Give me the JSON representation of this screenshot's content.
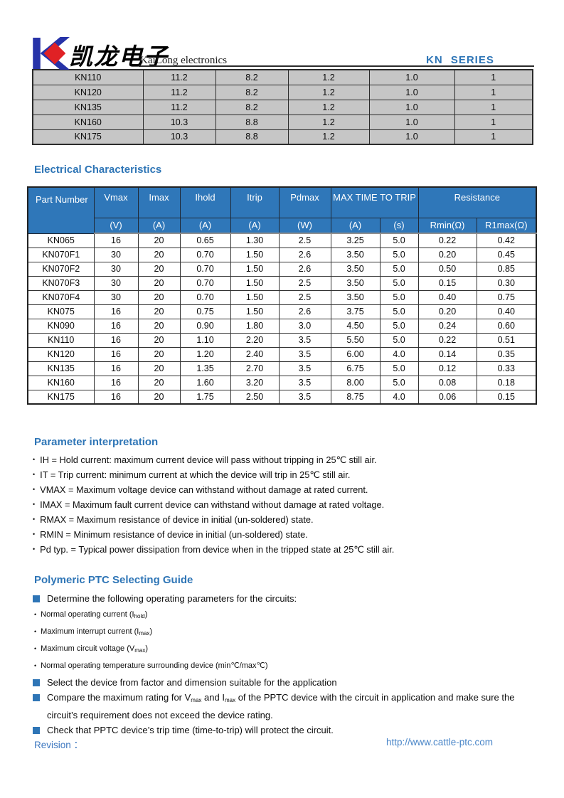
{
  "header": {
    "logo_cn": "凯龙电子",
    "logo_en": "KaiLong electronics",
    "series": "KN   SERIES"
  },
  "colors": {
    "accent": "#2E75B6",
    "table_header_blue": "#2F77B9",
    "table_gray": "#C6C6C6",
    "logo_blue": "#2733A8",
    "logo_red": "#E02125",
    "link_blue": "#4A86C8"
  },
  "top_table": {
    "rows": [
      [
        "KN110",
        "11.2",
        "8.2",
        "1.2",
        "1.0",
        "1"
      ],
      [
        "KN120",
        "11.2",
        "8.2",
        "1.2",
        "1.0",
        "1"
      ],
      [
        "KN135",
        "11.2",
        "8.2",
        "1.2",
        "1.0",
        "1"
      ],
      [
        "KN160",
        "10.3",
        "8.8",
        "1.2",
        "1.0",
        "1"
      ],
      [
        "KN175",
        "10.3",
        "8.8",
        "1.2",
        "1.0",
        "1"
      ]
    ]
  },
  "sections": {
    "electrical": "Electrical Characteristics",
    "parameter": "Parameter interpretation",
    "guide": "Polymeric PTC Selecting Guide"
  },
  "ec_table": {
    "headers": {
      "part": "Part Number",
      "vmax": "Vmax",
      "imax": "Imax",
      "ihold": "Ihold",
      "itrip": "Itrip",
      "pdmax": "Pdmax",
      "max_time": "MAX TIME TO TRIP",
      "resistance": "Resistance"
    },
    "units": [
      "(V)",
      "(A)",
      "(A)",
      "(A)",
      "(W)",
      "(A)",
      "(s)",
      "Rmin(Ω)",
      "R1max(Ω)"
    ],
    "rows": [
      [
        "KN065",
        "16",
        "20",
        "0.65",
        "1.30",
        "2.5",
        "3.25",
        "5.0",
        "0.22",
        "0.42"
      ],
      [
        "KN070F1",
        "30",
        "20",
        "0.70",
        "1.50",
        "2.6",
        "3.50",
        "5.0",
        "0.20",
        "0.45"
      ],
      [
        "KN070F2",
        "30",
        "20",
        "0.70",
        "1.50",
        "2.6",
        "3.50",
        "5.0",
        "0.50",
        "0.85"
      ],
      [
        "KN070F3",
        "30",
        "20",
        "0.70",
        "1.50",
        "2.5",
        "3.50",
        "5.0",
        "0.15",
        "0.30"
      ],
      [
        "KN070F4",
        "30",
        "20",
        "0.70",
        "1.50",
        "2.5",
        "3.50",
        "5.0",
        "0.40",
        "0.75"
      ],
      [
        "KN075",
        "16",
        "20",
        "0.75",
        "1.50",
        "2.6",
        "3.75",
        "5.0",
        "0.20",
        "0.40"
      ],
      [
        "KN090",
        "16",
        "20",
        "0.90",
        "1.80",
        "3.0",
        "4.50",
        "5.0",
        "0.24",
        "0.60"
      ],
      [
        "KN110",
        "16",
        "20",
        "1.10",
        "2.20",
        "3.5",
        "5.50",
        "5.0",
        "0.22",
        "0.51"
      ],
      [
        "KN120",
        "16",
        "20",
        "1.20",
        "2.40",
        "3.5",
        "6.00",
        "4.0",
        "0.14",
        "0.35"
      ],
      [
        "KN135",
        "16",
        "20",
        "1.35",
        "2.70",
        "3.5",
        "6.75",
        "5.0",
        "0.12",
        "0.33"
      ],
      [
        "KN160",
        "16",
        "20",
        "1.60",
        "3.20",
        "3.5",
        "8.00",
        "5.0",
        "0.08",
        "0.18"
      ],
      [
        "KN175",
        "16",
        "20",
        "1.75",
        "2.50",
        "3.5",
        "8.75",
        "4.0",
        "0.06",
        "0.15"
      ]
    ]
  },
  "param_bullets": [
    "IH = Hold current: maximum current device will pass without tripping in 25℃  still air.",
    "IT = Trip current: minimum current at which the device will trip in 25℃  still air.",
    "VMAX = Maximum voltage device can withstand without damage at rated current.",
    "IMAX = Maximum fault current device can withstand without damage at rated voltage.",
    "RMAX = Maximum resistance of device in initial (un-soldered) state.",
    "RMIN = Minimum resistance of device in initial (un-soldered) state.",
    "Pd typ. = Typical power dissipation from device when in the tripped state at 25℃  still air."
  ],
  "guide": {
    "determine": "Determine the following operating parameters for the circuits:",
    "dots": [
      {
        "pre": "Normal operating current (I",
        "sub": "hold",
        "post": ")"
      },
      {
        "pre": "Maximum interrupt current (I",
        "sub": "max",
        "post": ")"
      },
      {
        "pre": "Maximum circuit voltage (V",
        "sub": "max",
        "post": ")"
      },
      {
        "pre": "Normal operating temperature surrounding device (min℃/max℃)",
        "sub": "",
        "post": ""
      }
    ],
    "select": "Select the device from factor and dimension suitable for the application",
    "compare": {
      "p1": "Compare the maximum rating for V",
      "s1": "max",
      "p2": " and I",
      "s2": "max",
      "p3": " of the PPTC device with the circuit in application and make sure the circuit’s requirement does not exceed the device rating."
    },
    "check": "Check that PPTC device’s trip time (time-to-trip) will protect the circuit."
  },
  "footer": {
    "revision_label": "Revision ：",
    "url": "http://www.cattle-ptc.com"
  }
}
